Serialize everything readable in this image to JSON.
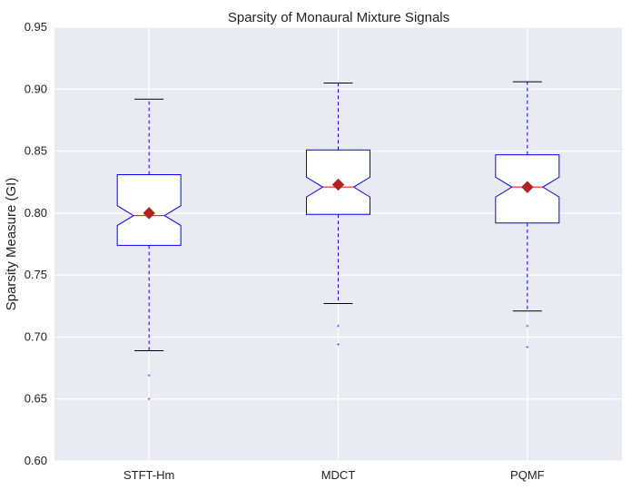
{
  "chart_data": {
    "type": "boxplot",
    "title": "Sparsity of Monaural Mixture Signals",
    "xlabel": "",
    "ylabel": "Sparsity Measure (GI)",
    "ylim": [
      0.6,
      0.95
    ],
    "yticks": [
      0.6,
      0.65,
      0.7,
      0.75,
      0.8,
      0.85,
      0.9,
      0.95
    ],
    "grid": true,
    "notched": true,
    "categories": [
      "STFT-Hm",
      "MDCT",
      "PQMF"
    ],
    "boxes": [
      {
        "label": "STFT-Hm",
        "whisker_low": 0.689,
        "q1": 0.774,
        "median": 0.798,
        "q3": 0.831,
        "whisker_high": 0.892,
        "notch_low": 0.79,
        "notch_high": 0.806,
        "mean": 0.8,
        "outliers": [
          0.669,
          0.65
        ]
      },
      {
        "label": "MDCT",
        "whisker_low": 0.727,
        "q1": 0.799,
        "median": 0.821,
        "q3": 0.851,
        "whisker_high": 0.905,
        "notch_low": 0.813,
        "notch_high": 0.829,
        "mean": 0.823,
        "outliers": [
          0.709,
          0.694
        ]
      },
      {
        "label": "PQMF",
        "whisker_low": 0.721,
        "q1": 0.792,
        "median": 0.821,
        "q3": 0.847,
        "whisker_high": 0.906,
        "notch_low": 0.813,
        "notch_high": 0.829,
        "mean": 0.821,
        "outliers": [
          0.709,
          0.692
        ]
      }
    ],
    "colors": {
      "background": "#EAEAF2",
      "grid": "#FFFFFF",
      "box": "#0000FF",
      "median": "#FF0000",
      "whisker": "#0000FF",
      "cap": "#000000",
      "mean": "#B22222",
      "outlier": "#0000FF"
    }
  }
}
